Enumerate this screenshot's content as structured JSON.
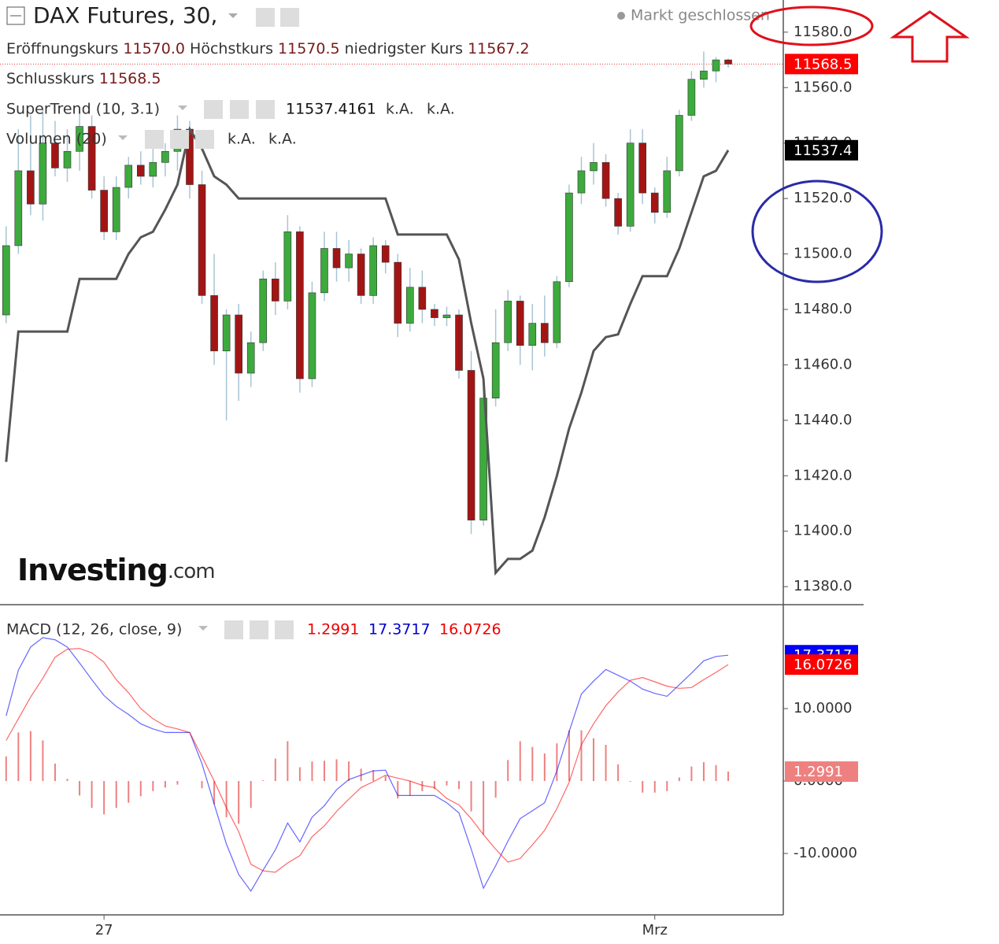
{
  "header": {
    "title": "DAX Futures, 30,",
    "status": "Markt geschlossen",
    "open_label": "Eröffnungskurs",
    "open": "11570.0",
    "high_label": "Höchstkurs",
    "high": "11570.5",
    "low_label": "niedrigster Kurs",
    "low": "11567.2",
    "close_label": "Schlusskurs",
    "close": "11568.5",
    "volume_label": "Volumen (20)",
    "na": "k.A.",
    "watermark": "Investing",
    "watermark_suffix": ".com"
  },
  "chart_data": [
    {
      "type": "candlestick",
      "xlim": [
        -0.5,
        63.5
      ],
      "ylim": [
        11373.5,
        11591.6
      ],
      "yticks": [
        {
          "value": 11380,
          "label": "11380.0"
        },
        {
          "value": 11400,
          "label": "11400.0"
        },
        {
          "value": 11420,
          "label": "11420.0"
        },
        {
          "value": 11440,
          "label": "11440.0"
        },
        {
          "value": 11460,
          "label": "11460.0"
        },
        {
          "value": 11480,
          "label": "11480.0"
        },
        {
          "value": 11500,
          "label": "11500.0"
        },
        {
          "value": 11520,
          "label": "11520.0"
        },
        {
          "value": 11540,
          "label": "11540.0"
        },
        {
          "value": 11560,
          "label": "11560.0"
        },
        {
          "value": 11580,
          "label": "11580.0"
        }
      ],
      "up_color": "#3daa3d",
      "down_color": "#a31515",
      "wick_color": "#a9c4d4",
      "grid": false,
      "open": [
        11478,
        11503,
        11530,
        11518,
        11540,
        11531,
        11537,
        11546,
        11523,
        11508,
        11524,
        11532,
        11528,
        11533,
        11537,
        11545,
        11525,
        11485,
        11465,
        11478,
        11457,
        11468,
        11491,
        11483,
        11508,
        11455,
        11486,
        11502,
        11495,
        11500,
        11485,
        11503,
        11497,
        11475,
        11488,
        11480,
        11477,
        11478,
        11458,
        11404,
        11448,
        11468,
        11483,
        11467,
        11475,
        11468,
        11490,
        11522,
        11530,
        11533,
        11520,
        11510,
        11540,
        11522,
        11515,
        11530,
        11550,
        11563,
        11566,
        11570
      ],
      "high": [
        11510,
        11545,
        11550,
        11552,
        11548,
        11545,
        11552,
        11550,
        11528,
        11528,
        11535,
        11537,
        11538,
        11540,
        11550,
        11548,
        11530,
        11500,
        11480,
        11482,
        11472,
        11494,
        11497,
        11514,
        11510,
        11490,
        11508,
        11508,
        11505,
        11502,
        11506,
        11505,
        11500,
        11495,
        11494,
        11482,
        11481,
        11480,
        11465,
        11452,
        11480,
        11487,
        11485,
        11482,
        11485,
        11492,
        11525,
        11535,
        11540,
        11536,
        11522,
        11545,
        11545,
        11524,
        11535,
        11552,
        11566,
        11573,
        11571,
        11570.5
      ],
      "low": [
        11475,
        11500,
        11514,
        11512,
        11528,
        11526,
        11530,
        11520,
        11505,
        11505,
        11520,
        11525,
        11524,
        11528,
        11530,
        11520,
        11482,
        11460,
        11440,
        11447,
        11452,
        11465,
        11478,
        11480,
        11450,
        11452,
        11483,
        11490,
        11490,
        11482,
        11482,
        11493,
        11470,
        11472,
        11475,
        11474,
        11474,
        11455,
        11399,
        11402,
        11445,
        11465,
        11460,
        11458,
        11463,
        11466,
        11488,
        11518,
        11525,
        11517,
        11507,
        11508,
        11518,
        11511,
        11513,
        11528,
        11548,
        11560,
        11562,
        11567.2
      ],
      "close": [
        11503,
        11530,
        11518,
        11540,
        11531,
        11537,
        11546,
        11523,
        11508,
        11524,
        11532,
        11528,
        11533,
        11537,
        11545,
        11525,
        11485,
        11465,
        11478,
        11457,
        11468,
        11491,
        11483,
        11508,
        11455,
        11486,
        11502,
        11495,
        11500,
        11485,
        11503,
        11497,
        11475,
        11488,
        11480,
        11477,
        11478,
        11458,
        11404,
        11448,
        11468,
        11483,
        11467,
        11475,
        11468,
        11490,
        11522,
        11530,
        11533,
        11520,
        11510,
        11540,
        11522,
        11515,
        11530,
        11550,
        11563,
        11566,
        11570,
        11568.5
      ],
      "overlays": [
        {
          "name": "SuperTrend (10, 3.1)",
          "color": "#555555",
          "last_label": "11537.4",
          "values": [
            11425,
            11472,
            11472,
            11472,
            11472,
            11472,
            11491,
            11491,
            11491,
            11491,
            11500,
            11506,
            11508,
            11516,
            11525,
            11545,
            11538,
            11528,
            11525,
            11520,
            11520,
            11520,
            11520,
            11520,
            11520,
            11520,
            11520,
            11520,
            11520,
            11520,
            11520,
            11520,
            11507,
            11507,
            11507,
            11507,
            11507,
            11498,
            11475,
            11455,
            11385,
            11390,
            11390,
            11393,
            11405,
            11420,
            11437,
            11450,
            11465,
            11470,
            11471,
            11482,
            11492,
            11492,
            11492,
            11502,
            11515,
            11528,
            11530,
            11537.4161
          ]
        }
      ]
    },
    {
      "type": "macd",
      "title": "MACD (12, 26, close, 9)",
      "xlim": [
        -0.5,
        63.5
      ],
      "ylim": [
        -18.48,
        24.35
      ],
      "yticks": [
        {
          "value": -10,
          "label": "-10.0000"
        },
        {
          "value": 0,
          "label": "0.0000"
        },
        {
          "value": 10,
          "label": "10.0000"
        }
      ],
      "xticks": [
        {
          "value": 8,
          "label": "27"
        },
        {
          "value": 53,
          "label": "Mrz"
        }
      ],
      "series": [
        {
          "style": "histogram",
          "color": "#ee8080",
          "values": [
            3.4,
            6.7,
            6.9,
            5.6,
            2.4,
            0.3,
            -2.0,
            -3.7,
            -4.6,
            -3.7,
            -3.0,
            -2.1,
            -1.4,
            -0.9,
            -0.5,
            0.0,
            -1.0,
            -3.2,
            -5.0,
            -5.9,
            -3.7,
            0.1,
            3.1,
            5.5,
            1.9,
            2.7,
            2.8,
            3.0,
            2.7,
            1.7,
            1.5,
            0.7,
            -2.4,
            -2.0,
            -1.4,
            -1.1,
            -0.6,
            -1.1,
            -4.2,
            -7.4,
            -2.3,
            2.9,
            5.5,
            4.7,
            3.8,
            5.2,
            7.0,
            7.0,
            5.9,
            5.0,
            2.3,
            -0.1,
            -1.6,
            -1.6,
            -1.4,
            0.5,
            2.0,
            2.6,
            2.2,
            1.2991
          ]
        },
        {
          "style": "line",
          "color": "#0000ff",
          "values": [
            9.0,
            15.3,
            18.5,
            19.8,
            19.5,
            18.5,
            16.3,
            14.0,
            11.8,
            10.3,
            9.2,
            7.9,
            7.2,
            6.7,
            6.7,
            6.7,
            2.4,
            -3.2,
            -8.7,
            -12.9,
            -15.2,
            -12.3,
            -9.5,
            -5.8,
            -8.4,
            -5.0,
            -3.4,
            -1.2,
            0.2,
            0.8,
            1.4,
            1.5,
            -2.0,
            -2.0,
            -2.0,
            -2.0,
            -3.0,
            -4.4,
            -9.4,
            -14.8,
            -11.7,
            -8.3,
            -5.2,
            -4.1,
            -3.0,
            1.4,
            6.8,
            12.0,
            13.8,
            15.4,
            14.6,
            13.8,
            12.7,
            12.1,
            11.7,
            13.3,
            14.9,
            16.6,
            17.2,
            17.3717
          ]
        },
        {
          "style": "line",
          "color": "#ff0000",
          "values": [
            5.6,
            8.6,
            11.6,
            14.2,
            17.1,
            18.2,
            18.3,
            17.7,
            16.4,
            14.0,
            12.2,
            10.0,
            8.6,
            7.6,
            7.2,
            6.7,
            3.4,
            0.0,
            -3.7,
            -7.0,
            -11.5,
            -12.4,
            -12.6,
            -11.3,
            -10.3,
            -7.7,
            -6.2,
            -4.2,
            -2.5,
            -0.9,
            -0.1,
            0.8,
            0.4,
            0.0,
            -0.6,
            -0.9,
            -2.4,
            -3.3,
            -5.2,
            -7.4,
            -9.4,
            -11.2,
            -10.7,
            -8.8,
            -6.8,
            -3.8,
            -0.2,
            5.0,
            7.9,
            10.4,
            12.3,
            13.9,
            14.3,
            13.7,
            13.1,
            12.8,
            12.9,
            14.0,
            15.0,
            16.0726
          ]
        }
      ]
    }
  ]
}
